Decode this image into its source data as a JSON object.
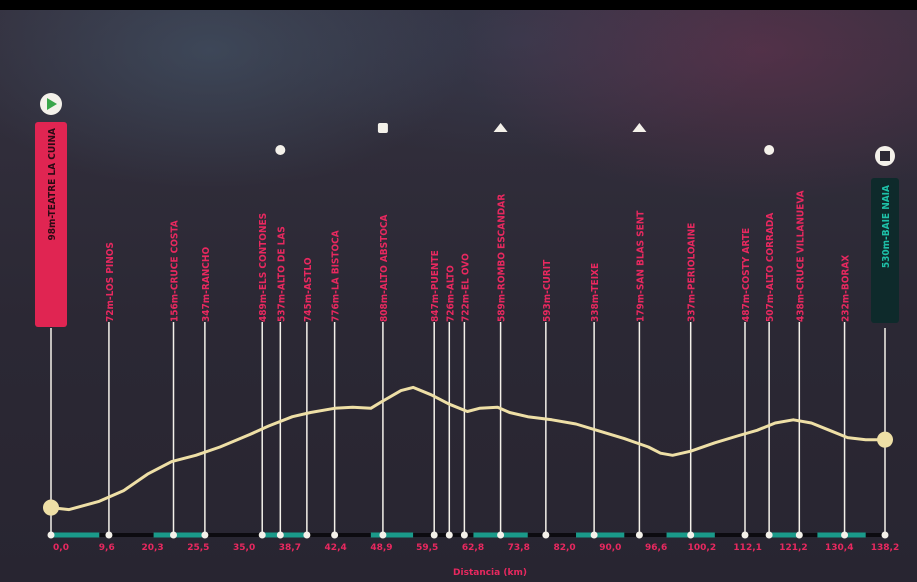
{
  "chart_data": {
    "type": "line",
    "title": "",
    "xlabel": "Distancia (km)",
    "ylabel": "",
    "xlim": [
      0,
      138.2
    ],
    "ylim": [
      0,
      900
    ],
    "colors": {
      "profile": "#eedfa6",
      "label": "#e8285f",
      "start_box": "#e02552",
      "finish_box": "#0e2a2b",
      "finish_text": "#1ec0a8",
      "segment": "#1a9a8a",
      "markers": "#f4f1ea"
    },
    "x_ticks": [
      "0,0",
      "9,6",
      "20,3",
      "25,5",
      "35,0",
      "38,7",
      "42,4",
      "48,9",
      "59,5",
      "62,8",
      "73,8",
      "82,0",
      "90,0",
      "96,6",
      "100,2",
      "112,1",
      "121,2",
      "130,4",
      "138,2"
    ],
    "series": [
      {
        "values": [
          {
            "x": 0,
            "y": 50
          },
          {
            "x": 3,
            "y": 40
          },
          {
            "x": 8,
            "y": 80
          },
          {
            "x": 12,
            "y": 130
          },
          {
            "x": 16,
            "y": 210
          },
          {
            "x": 20,
            "y": 270
          },
          {
            "x": 24,
            "y": 300
          },
          {
            "x": 28,
            "y": 340
          },
          {
            "x": 33,
            "y": 400
          },
          {
            "x": 36,
            "y": 440
          },
          {
            "x": 40,
            "y": 485
          },
          {
            "x": 43,
            "y": 505
          },
          {
            "x": 47,
            "y": 525
          },
          {
            "x": 50,
            "y": 530
          },
          {
            "x": 53,
            "y": 525
          },
          {
            "x": 55,
            "y": 560
          },
          {
            "x": 58,
            "y": 610
          },
          {
            "x": 60,
            "y": 625
          },
          {
            "x": 63,
            "y": 590
          },
          {
            "x": 66,
            "y": 545
          },
          {
            "x": 69,
            "y": 510
          },
          {
            "x": 71,
            "y": 525
          },
          {
            "x": 74,
            "y": 530
          },
          {
            "x": 76,
            "y": 505
          },
          {
            "x": 79,
            "y": 485
          },
          {
            "x": 83,
            "y": 470
          },
          {
            "x": 87,
            "y": 450
          },
          {
            "x": 91,
            "y": 415
          },
          {
            "x": 95,
            "y": 380
          },
          {
            "x": 99,
            "y": 340
          },
          {
            "x": 101,
            "y": 310
          },
          {
            "x": 103,
            "y": 300
          },
          {
            "x": 106,
            "y": 320
          },
          {
            "x": 110,
            "y": 360
          },
          {
            "x": 114,
            "y": 395
          },
          {
            "x": 117,
            "y": 420
          },
          {
            "x": 120,
            "y": 455
          },
          {
            "x": 123,
            "y": 470
          },
          {
            "x": 126,
            "y": 455
          },
          {
            "x": 129,
            "y": 420
          },
          {
            "x": 132,
            "y": 385
          },
          {
            "x": 135,
            "y": 375
          },
          {
            "x": 138.2,
            "y": 375
          }
        ]
      }
    ],
    "points": [
      {
        "x": 0,
        "label": "98m-TEATRE LA CUINA",
        "icon": "start-icon",
        "box": "start"
      },
      {
        "x": 9.6,
        "label": "72m-LOS PINOS"
      },
      {
        "x": 20.3,
        "label": "156m-CRUCE COSTA"
      },
      {
        "x": 25.5,
        "label": "347m-RANCHO"
      },
      {
        "x": 35.0,
        "label": "489m-ELS CONTONES"
      },
      {
        "x": 38.0,
        "label": "537m-ALTO DE LAS",
        "icon": "sprint-icon"
      },
      {
        "x": 42.4,
        "label": "745m-ASTLO"
      },
      {
        "x": 47.0,
        "label": "776m-LA BISTOCA"
      },
      {
        "x": 55.0,
        "label": "808m-ALTO ABSTOCA",
        "icon": "kom-icon-2"
      },
      {
        "x": 63.5,
        "label": "847m-PUENTE"
      },
      {
        "x": 66.0,
        "label": "726m-ALTO"
      },
      {
        "x": 68.5,
        "label": "722m-EL OVO"
      },
      {
        "x": 74.5,
        "label": "589m-ROMBO ESCANDAR",
        "icon": "kom-icon"
      },
      {
        "x": 82.0,
        "label": "593m-CURIT"
      },
      {
        "x": 90.0,
        "label": "338m-TEIXE"
      },
      {
        "x": 97.5,
        "label": "179m-SAN BLAS SENT",
        "icon": "kom-icon"
      },
      {
        "x": 106.0,
        "label": "337m-PERIOLOAINE"
      },
      {
        "x": 115.0,
        "label": "487m-COSTY ARTE"
      },
      {
        "x": 119.0,
        "label": "507m-ALTO CORRADA",
        "icon": "sprint-icon"
      },
      {
        "x": 124.0,
        "label": "438m-CRUCE VILLANUEVA"
      },
      {
        "x": 131.5,
        "label": "232m-BORAX"
      },
      {
        "x": 138.2,
        "label": "530m-BAIE NAIA",
        "icon": "finish-icon",
        "box": "finish"
      }
    ],
    "segments": [
      [
        0,
        8
      ],
      [
        17,
        25
      ],
      [
        35,
        42
      ],
      [
        53,
        60
      ],
      [
        70,
        79
      ],
      [
        87,
        95
      ],
      [
        102,
        110
      ],
      [
        119,
        124
      ],
      [
        127,
        135
      ]
    ]
  }
}
